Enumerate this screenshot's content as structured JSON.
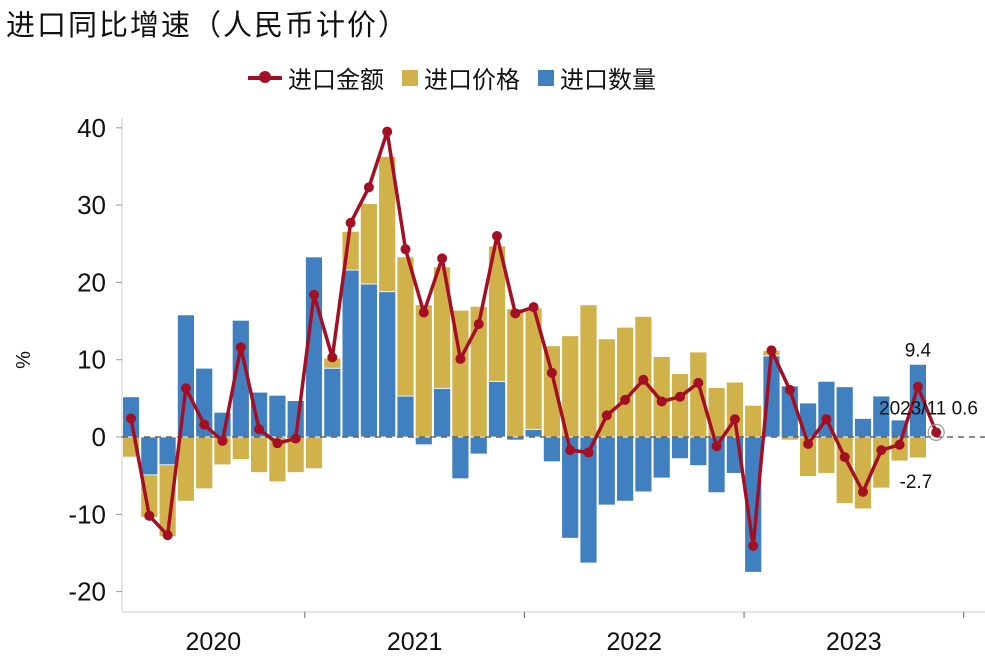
{
  "chart_data": {
    "type": "bar",
    "title": "进口同比增速（人民币计价）",
    "ylabel": "%",
    "xlabel": "",
    "ylim": [
      -22,
      42
    ],
    "yticks": [
      -20,
      -10,
      0,
      10,
      20,
      30,
      40
    ],
    "grid": false,
    "legend_position": "top",
    "year_labels": [
      "2020",
      "2021",
      "2022",
      "2023"
    ],
    "x": [
      "2020-03",
      "2020-04",
      "2020-05",
      "2020-06",
      "2020-07",
      "2020-08",
      "2020-09",
      "2020-10",
      "2020-11",
      "2020-12",
      "2021-01",
      "2021-02",
      "2021-03",
      "2021-04",
      "2021-05",
      "2021-06",
      "2021-07",
      "2021-08",
      "2021-09",
      "2021-10",
      "2021-11",
      "2021-12",
      "2022-01",
      "2022-02",
      "2022-03",
      "2022-04",
      "2022-05",
      "2022-06",
      "2022-07",
      "2022-08",
      "2022-09",
      "2022-10",
      "2022-11",
      "2022-12",
      "2023-01",
      "2023-02",
      "2023-03",
      "2023-04",
      "2023-05",
      "2023-06",
      "2023-07",
      "2023-08",
      "2023-09",
      "2023-10",
      "2023-11"
    ],
    "series": [
      {
        "name": "进口金额",
        "kind": "line",
        "color": "#a50f24",
        "values": [
          2.4,
          -10.2,
          -12.7,
          6.3,
          1.6,
          -0.5,
          11.6,
          1.0,
          -0.8,
          -0.2,
          18.4,
          10.3,
          27.7,
          32.3,
          39.5,
          24.3,
          16.1,
          23.1,
          10.1,
          14.6,
          26.0,
          16.0,
          16.8,
          8.3,
          -1.7,
          -2.0,
          2.8,
          4.8,
          7.4,
          4.6,
          5.2,
          7.0,
          -1.2,
          2.3,
          -14.1,
          11.2,
          6.1,
          -0.9,
          2.3,
          -2.6,
          -7.1,
          -1.7,
          -1.0,
          6.5,
          0.6
        ]
      },
      {
        "name": "进口价格",
        "kind": "bar",
        "color": "#d0b14a",
        "values": [
          -2.6,
          -5.5,
          -9.3,
          -8.3,
          -6.7,
          -3.6,
          -2.9,
          -4.6,
          -5.8,
          -4.6,
          -4.1,
          1.3,
          5.0,
          10.4,
          17.5,
          18.0,
          17.1,
          15.7,
          16.4,
          16.9,
          17.5,
          16.6,
          15.7,
          11.8,
          13.1,
          17.1,
          12.7,
          14.2,
          15.6,
          10.4,
          8.2,
          11.0,
          6.4,
          7.1,
          4.1,
          0.7,
          -0.4,
          -5.1,
          -4.7,
          -8.6,
          -9.3,
          -6.6,
          -3.1,
          -2.7,
          null
        ]
      },
      {
        "name": "进口数量",
        "kind": "bar",
        "color": "#4080c0",
        "values": [
          5.2,
          -4.9,
          -3.6,
          15.8,
          8.9,
          3.2,
          15.1,
          5.8,
          5.4,
          4.7,
          23.3,
          8.9,
          21.6,
          19.8,
          18.8,
          5.3,
          -1.0,
          6.3,
          -5.4,
          -2.2,
          7.2,
          -0.4,
          1.0,
          -3.2,
          -13.1,
          -16.3,
          -8.8,
          -8.3,
          -7.1,
          -5.3,
          -2.8,
          -3.7,
          -7.2,
          -4.7,
          -17.5,
          10.5,
          6.6,
          4.4,
          7.2,
          6.5,
          2.4,
          5.3,
          2.2,
          9.4,
          null
        ]
      }
    ],
    "annotations": {
      "last_point_label": "2023/11 0.6",
      "quantity_label": "9.4",
      "price_label": "-2.7"
    }
  }
}
